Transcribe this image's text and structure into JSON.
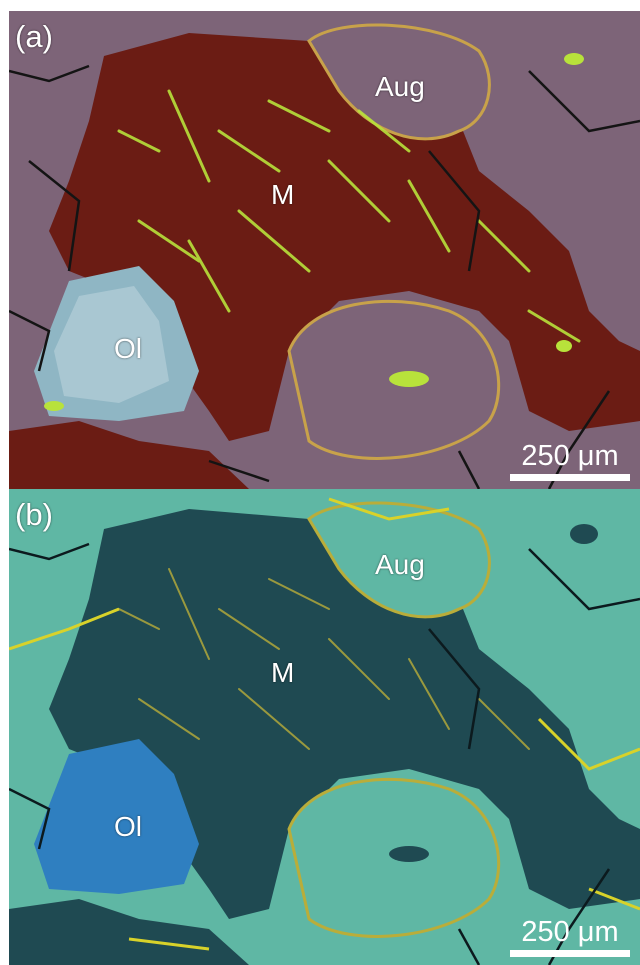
{
  "panels": [
    {
      "letter": "(a)",
      "labels": {
        "aug": "Aug",
        "matrix": "M",
        "ol": "Ol"
      },
      "scale_bar": "250 μm",
      "colors": {
        "grain": "#7d6478",
        "matrix": "#6b1c14",
        "crystals": "#b8e23b",
        "olivine": "#8fb6c4",
        "rim": "#c8a24a",
        "cracks": "#141414"
      }
    },
    {
      "letter": "(b)",
      "labels": {
        "aug": "Aug",
        "matrix": "M",
        "ol": "Ol"
      },
      "scale_bar": "250 μm",
      "colors": {
        "grain": "#5fb7a4",
        "matrix": "#1f4a52",
        "crystals": "#b9ad3a",
        "olivine": "#2f7fc0",
        "rim": "#d8d22a",
        "cracks": "#0c1a1e"
      }
    }
  ]
}
